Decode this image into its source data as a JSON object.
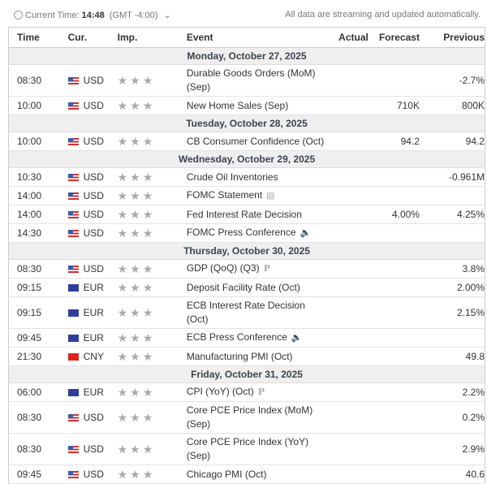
{
  "header": {
    "current_time_label": "Current Time:",
    "current_time": "14:48",
    "timezone": "(GMT -4:00)",
    "note": "All data are streaming and updated automatically."
  },
  "columns": {
    "time": "Time",
    "cur": "Cur.",
    "imp": "Imp.",
    "event": "Event",
    "actual": "Actual",
    "forecast": "Forecast",
    "previous": "Previous"
  },
  "rows": [
    {
      "day": "Monday, October 27, 2025"
    },
    {
      "time": "08:30",
      "cur": "USD",
      "event": "Durable Goods Orders (MoM) (Sep)",
      "actual": "",
      "forecast": "",
      "previous": "-2.7%",
      "tall": true
    },
    {
      "time": "10:00",
      "cur": "USD",
      "event": "New Home Sales (Sep)",
      "actual": "",
      "forecast": "710K",
      "previous": "800K"
    },
    {
      "day": "Tuesday, October 28, 2025"
    },
    {
      "time": "10:00",
      "cur": "USD",
      "event": "CB Consumer Confidence (Oct)",
      "actual": "",
      "forecast": "94.2",
      "previous": "94.2"
    },
    {
      "day": "Wednesday, October 29, 2025"
    },
    {
      "time": "10:30",
      "cur": "USD",
      "event": "Crude Oil Inventories",
      "actual": "",
      "forecast": "",
      "previous": "-0.961M"
    },
    {
      "time": "14:00",
      "cur": "USD",
      "event": "FOMC Statement",
      "icon": "document-icon",
      "actual": "",
      "forecast": "",
      "previous": ""
    },
    {
      "time": "14:00",
      "cur": "USD",
      "event": "Fed Interest Rate Decision",
      "actual": "",
      "forecast": "4.00%",
      "previous": "4.25%"
    },
    {
      "time": "14:30",
      "cur": "USD",
      "event": "FOMC Press Conference",
      "icon": "speaker-icon",
      "actual": "",
      "forecast": "",
      "previous": ""
    },
    {
      "day": "Thursday, October 30, 2025"
    },
    {
      "time": "08:30",
      "cur": "USD",
      "event": "GDP (QoQ) (Q3)",
      "icon": "preliminary-icon",
      "actual": "",
      "forecast": "",
      "previous": "3.8%"
    },
    {
      "time": "09:15",
      "cur": "EUR",
      "event": "Deposit Facility Rate (Oct)",
      "actual": "",
      "forecast": "",
      "previous": "2.00%"
    },
    {
      "time": "09:15",
      "cur": "EUR",
      "event": "ECB Interest Rate Decision (Oct)",
      "actual": "",
      "forecast": "",
      "previous": "2.15%",
      "tall": true
    },
    {
      "time": "09:45",
      "cur": "EUR",
      "event": "ECB Press Conference",
      "icon": "speaker-icon",
      "actual": "",
      "forecast": "",
      "previous": ""
    },
    {
      "time": "21:30",
      "cur": "CNY",
      "event": "Manufacturing PMI (Oct)",
      "actual": "",
      "forecast": "",
      "previous": "49.8"
    },
    {
      "day": "Friday, October 31, 2025"
    },
    {
      "time": "06:00",
      "cur": "EUR",
      "event": "CPI (YoY) (Oct)",
      "icon": "preliminary-icon",
      "actual": "",
      "forecast": "",
      "previous": "2.2%"
    },
    {
      "time": "08:30",
      "cur": "USD",
      "event": "Core PCE Price Index (MoM) (Sep)",
      "actual": "",
      "forecast": "",
      "previous": "0.2%",
      "tall": true
    },
    {
      "time": "08:30",
      "cur": "USD",
      "event": "Core PCE Price Index (YoY) (Sep)",
      "actual": "",
      "forecast": "",
      "previous": "2.9%",
      "tall": true
    },
    {
      "time": "09:45",
      "cur": "USD",
      "event": "Chicago PMI (Oct)",
      "actual": "",
      "forecast": "",
      "previous": "40.6"
    }
  ]
}
